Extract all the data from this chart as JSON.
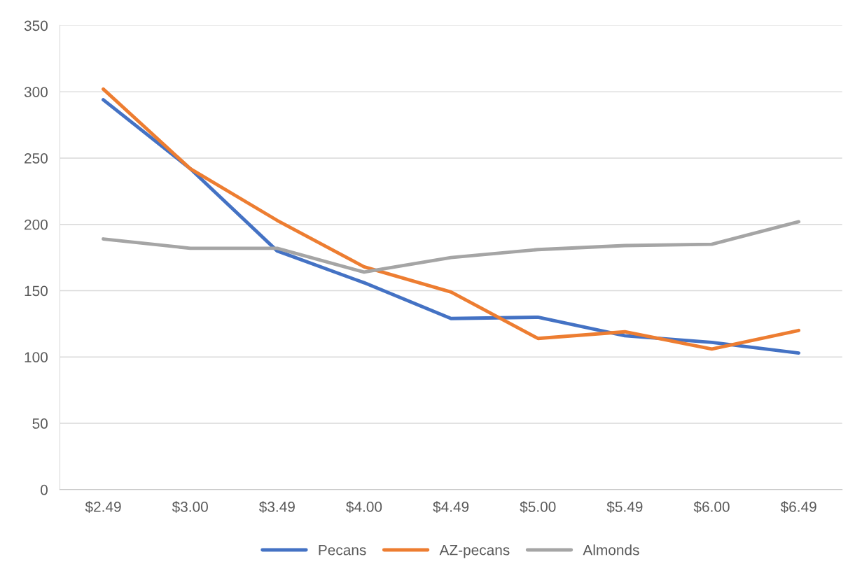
{
  "chart_data": {
    "type": "line",
    "categories": [
      "$2.49",
      "$3.00",
      "$3.49",
      "$4.00",
      "$4.49",
      "$5.00",
      "$5.49",
      "$6.00",
      "$6.49"
    ],
    "series": [
      {
        "name": "Pecans",
        "color": "#4472c4",
        "values": [
          294,
          242,
          180,
          156,
          129,
          130,
          116,
          111,
          103
        ]
      },
      {
        "name": "AZ-pecans",
        "color": "#ed7d31",
        "values": [
          302,
          242,
          203,
          168,
          149,
          114,
          119,
          106,
          120
        ]
      },
      {
        "name": "Almonds",
        "color": "#a5a5a5",
        "values": [
          189,
          182,
          182,
          164,
          175,
          181,
          184,
          185,
          202
        ]
      }
    ],
    "ylim": [
      0,
      350
    ],
    "yticks": [
      0,
      50,
      100,
      150,
      200,
      250,
      300,
      350
    ],
    "grid": "y",
    "legend": "bottom",
    "marker": "none",
    "line_style": "solid"
  }
}
